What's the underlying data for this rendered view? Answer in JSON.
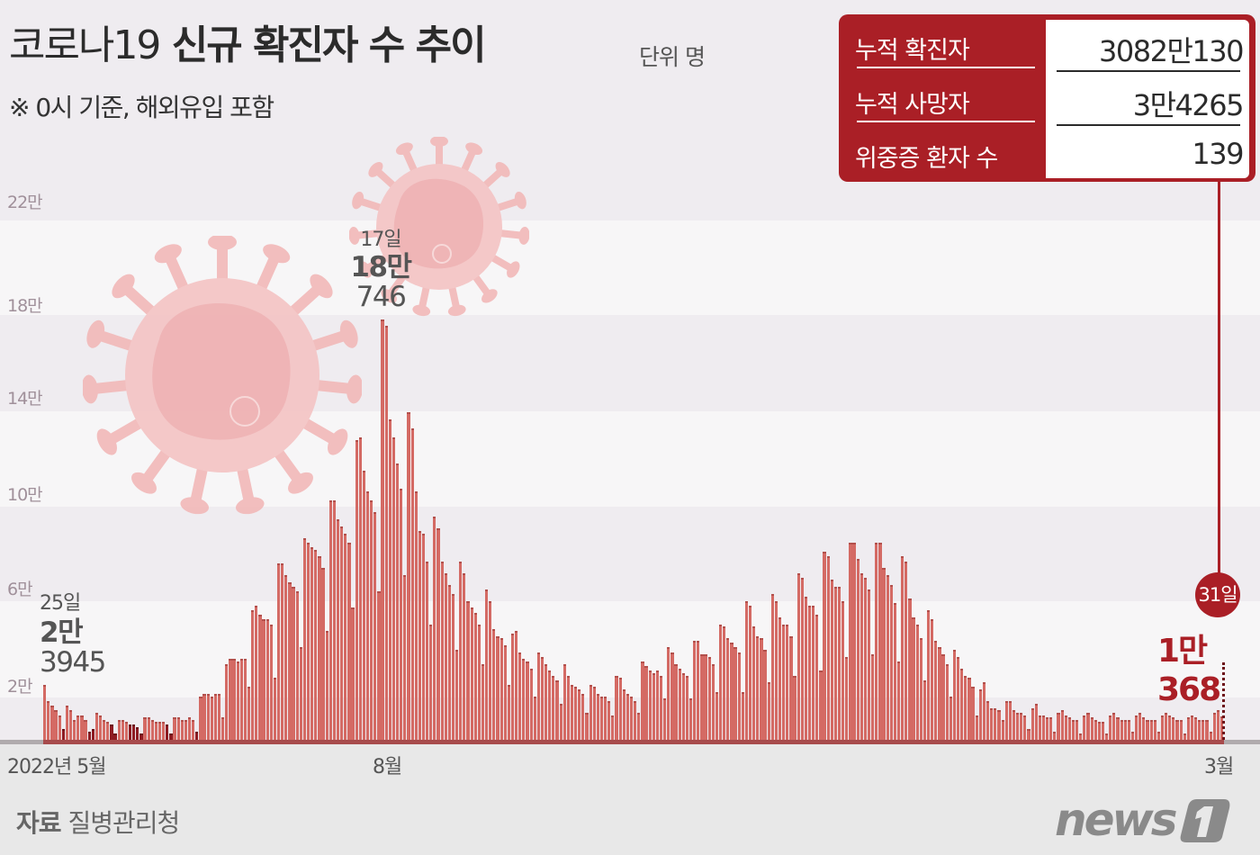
{
  "header": {
    "title_part1": "코로나19",
    "title_part2": " 신규 확진자 수 추이",
    "unit": "단위 명",
    "subtitle": "※ 0시 기준, 해외유입 포함"
  },
  "stats_box": {
    "rows": [
      {
        "label": "누적 확진자",
        "value": "3082만130"
      },
      {
        "label": "누적 사망자",
        "value": "3만4265"
      },
      {
        "label": "위중증 환자 수",
        "value": "139"
      }
    ],
    "colors": {
      "box": "#aa1f26",
      "value_bg": "#ffffff"
    }
  },
  "annotations": {
    "start": {
      "day": "25일",
      "value_line1": "2만",
      "value_line2": "3945"
    },
    "peak": {
      "day": "17일",
      "value_line1": "18만",
      "value_line2": "746"
    },
    "end": {
      "day": "31일",
      "value": "1만368"
    }
  },
  "footer": {
    "source_label": "자료",
    "source_name": "질병관리청",
    "logo_text": "news1"
  },
  "chart_data": {
    "type": "bar",
    "title": "코로나19 신규 확진자 수 추이",
    "subtitle": "※ 0시 기준, 해외유입 포함",
    "unit": "명",
    "xlabel": "",
    "ylabel": "",
    "x_tick_labels": [
      "2022년 5월",
      "8월",
      "3월"
    ],
    "y_tick_labels": [
      "2만",
      "6만",
      "10만",
      "14만",
      "18만",
      "22만"
    ],
    "y_ticks": [
      20000,
      60000,
      100000,
      140000,
      180000,
      220000
    ],
    "ylim": [
      0,
      230000
    ],
    "grid": "alternating horizontal bands",
    "bar_color": "#d46a64",
    "low_bar_color": "#8e1b22",
    "highlighted_points": [
      {
        "label": "25일",
        "value": 23945,
        "position": "first"
      },
      {
        "label": "17일",
        "value": 180746,
        "position": "peak"
      },
      {
        "label": "31일",
        "value": 10368,
        "position": "last"
      }
    ],
    "values": [
      23945,
      17000,
      15000,
      13000,
      11000,
      5000,
      15000,
      13000,
      9000,
      11000,
      11000,
      9000,
      4000,
      5000,
      12000,
      11000,
      9000,
      8000,
      7000,
      3000,
      9000,
      9000,
      8000,
      7000,
      7000,
      6000,
      3000,
      10000,
      10000,
      9000,
      8000,
      8000,
      8000,
      7000,
      3000,
      10000,
      10000,
      9000,
      9000,
      10000,
      9000,
      4000,
      19000,
      20000,
      20000,
      19000,
      20000,
      20000,
      10000,
      33000,
      35000,
      35000,
      34000,
      35000,
      35000,
      23000,
      56000,
      58000,
      54000,
      52000,
      52000,
      50000,
      27000,
      76000,
      76000,
      71000,
      68000,
      66000,
      64000,
      40000,
      87000,
      85000,
      83000,
      82000,
      79000,
      74000,
      47000,
      103000,
      103000,
      95000,
      92000,
      89000,
      85000,
      57000,
      129000,
      130000,
      116000,
      107000,
      103000,
      98000,
      64000,
      180746,
      178000,
      138000,
      130000,
      119000,
      108000,
      71000,
      141000,
      134000,
      107000,
      90000,
      89000,
      77000,
      50000,
      96000,
      91000,
      77000,
      72000,
      67000,
      63000,
      39000,
      77000,
      72000,
      60000,
      57000,
      55000,
      50000,
      33000,
      65000,
      60000,
      48000,
      45000,
      44000,
      41000,
      24000,
      46000,
      47000,
      38000,
      35000,
      34000,
      31000,
      19000,
      38000,
      36000,
      33000,
      30000,
      28000,
      26000,
      16000,
      33000,
      28000,
      24000,
      23000,
      22000,
      20000,
      12000,
      24000,
      23000,
      20000,
      19000,
      19000,
      17000,
      11000,
      28000,
      27000,
      22000,
      20000,
      19000,
      17000,
      12000,
      34000,
      32000,
      30000,
      29000,
      30000,
      28000,
      18000,
      40000,
      38000,
      33000,
      31000,
      29000,
      28000,
      18000,
      43000,
      43000,
      37000,
      37000,
      36000,
      33000,
      21000,
      50000,
      49000,
      44000,
      42000,
      40000,
      38000,
      21000,
      60000,
      58000,
      49000,
      45000,
      44000,
      39000,
      25000,
      63000,
      60000,
      53000,
      50000,
      50000,
      45000,
      28000,
      72000,
      70000,
      62000,
      58000,
      58000,
      54000,
      30000,
      81000,
      79000,
      69000,
      66000,
      66000,
      60000,
      36000,
      85000,
      85000,
      78000,
      72000,
      70000,
      65000,
      37000,
      85000,
      85000,
      74000,
      71000,
      67000,
      59000,
      34000,
      79000,
      77000,
      61000,
      53000,
      50000,
      44000,
      26000,
      56000,
      52000,
      43000,
      40000,
      37000,
      33000,
      19000,
      39000,
      36000,
      31000,
      28000,
      27000,
      23000,
      11000,
      22000,
      25000,
      17000,
      14000,
      14000,
      13000,
      9000,
      17000,
      17000,
      13000,
      12000,
      12000,
      11000,
      5000,
      14000,
      16000,
      11000,
      11000,
      10000,
      10000,
      4000,
      12000,
      13000,
      11000,
      10000,
      9000,
      9000,
      3000,
      11000,
      12000,
      10000,
      9000,
      8000,
      8000,
      3000,
      11000,
      12000,
      10000,
      9000,
      9000,
      9000,
      4000,
      11000,
      12000,
      10000,
      9000,
      9000,
      9000,
      4000,
      11000,
      12000,
      11000,
      10000,
      9000,
      9000,
      3000,
      10000,
      11000,
      10000,
      9000,
      9000,
      9000,
      4000,
      12000,
      13000,
      10368
    ]
  }
}
